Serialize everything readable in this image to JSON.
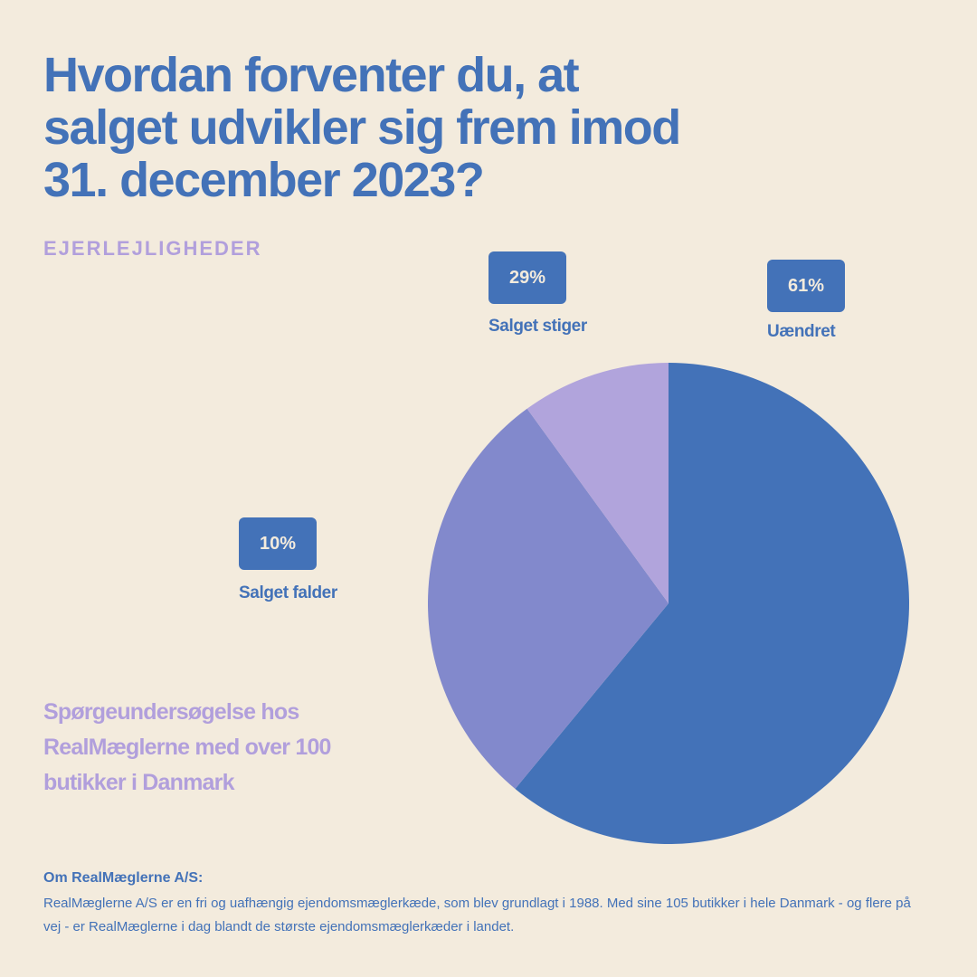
{
  "title": "Hvordan forventer du, at salget udvikler sig frem imod 31. december 2023?",
  "subtitle": "EJERLEJLIGHEDER",
  "survey_note": "Spørgeundersøgelse hos RealMæglerne med over 100 butikker i Danmark",
  "footer": {
    "heading": "Om RealMæglerne A/S:",
    "text": "RealMæglerne A/S er en fri og uafhængig ejendomsmæglerkæde, som blev grundlagt i 1988. Med sine 105 butikker i hele Danmark - og flere på vej - er RealMæglerne i dag blandt de største ejendomsmæglerkæder i landet."
  },
  "colors": {
    "background": "#f3ebdd",
    "primary": "#4372b8",
    "slice_uaendret": "#4372b8",
    "slice_stiger": "#8289cc",
    "slice_falder": "#b1a4dc"
  },
  "chart_data": {
    "type": "pie",
    "title": "Hvordan forventer du, at salget udvikler sig frem imod 31. december 2023?",
    "subtitle": "EJERLEJLIGHEDER",
    "slices": [
      {
        "label": "Uændret",
        "value": 61,
        "display": "61%",
        "color": "#4372b8"
      },
      {
        "label": "Salget stiger",
        "value": 29,
        "display": "29%",
        "color": "#8289cc"
      },
      {
        "label": "Salget falder",
        "value": 10,
        "display": "10%",
        "color": "#b1a4dc"
      }
    ]
  }
}
